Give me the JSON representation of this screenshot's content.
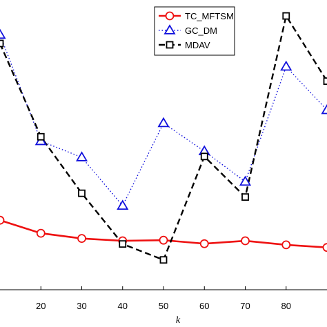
{
  "chart_data": {
    "type": "line",
    "xlabel": "k",
    "ylabel": "",
    "title": "",
    "x_ticks": [
      20,
      30,
      40,
      50,
      60,
      70,
      80
    ],
    "xlim": [
      10,
      90
    ],
    "ylim": [
      0,
      100
    ],
    "grid": false,
    "legend_position": "top-right",
    "series": [
      {
        "name": "TC_MFTSM",
        "color": "#ee1111",
        "dash": "solid",
        "marker": "circle",
        "x": [
          10,
          20,
          30,
          40,
          50,
          60,
          70,
          80,
          90
        ],
        "y": [
          24.0,
          19.5,
          17.7,
          16.9,
          17.1,
          15.9,
          16.9,
          15.5,
          14.6
        ]
      },
      {
        "name": "GC_DM",
        "color": "#1111dd",
        "dash": "dotted",
        "marker": "triangle",
        "x": [
          10,
          20,
          30,
          40,
          50,
          60,
          70,
          80,
          90
        ],
        "y": [
          88.0,
          51.3,
          45.7,
          29.0,
          57.5,
          47.8,
          37.3,
          77.0,
          62.0
        ]
      },
      {
        "name": "MDAV",
        "color": "#000000",
        "dash": "dashed",
        "marker": "square",
        "x": [
          10,
          20,
          30,
          40,
          50,
          60,
          70,
          80,
          90
        ],
        "y": [
          85.0,
          52.8,
          33.3,
          15.8,
          10.3,
          46.0,
          32.0,
          94.5,
          72.0
        ]
      }
    ]
  }
}
